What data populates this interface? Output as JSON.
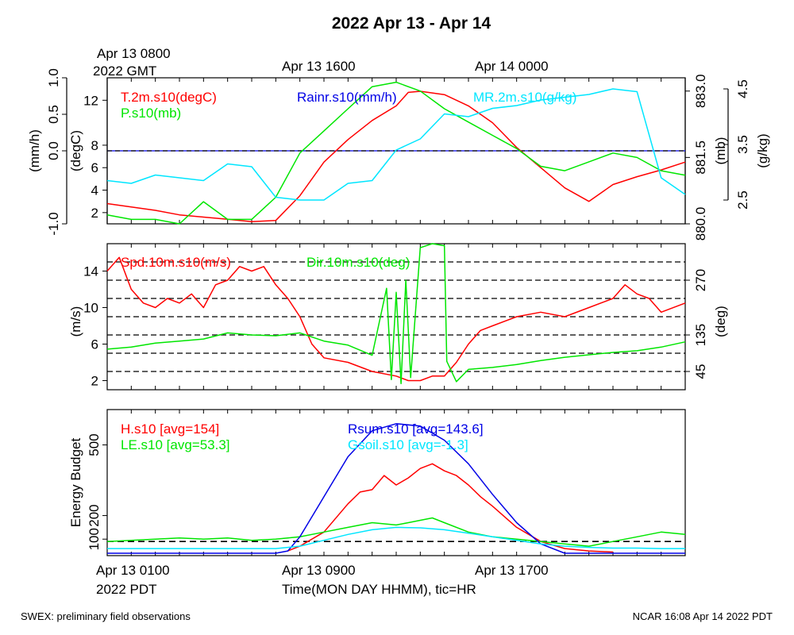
{
  "title": "2022 Apr 13 - Apr 14",
  "top_time_labels": {
    "start_line1": "Apr 13 0800",
    "start_line2": "2022 GMT",
    "mid": "Apr 13 1600",
    "end": "Apr 14 0000"
  },
  "bottom_time_labels": {
    "start_line1": "Apr 13 0100",
    "start_line2": "2022 PDT",
    "mid": "Apr 13 0900",
    "end": "Apr 13 1700"
  },
  "xlabel": "Time(MON DAY HHMM), tic=HR",
  "footer_left": "SWEX: preliminary field observations",
  "footer_right": "NCAR 16:08 Apr 14 2022 PDT",
  "colors": {
    "red": "#ff0000",
    "green": "#00e600",
    "blue": "#0000e6",
    "cyan": "#00e6ff",
    "black": "#000000"
  },
  "chart_data": [
    {
      "type": "line",
      "panel": "met",
      "x_range_hours": [
        0,
        24
      ],
      "x_ticks_hours": [
        1,
        2,
        3,
        4,
        5,
        6,
        7,
        8,
        9,
        10,
        11,
        12,
        13,
        14,
        15,
        16,
        17,
        18,
        19,
        20,
        21,
        22,
        23
      ],
      "axes": {
        "rain": {
          "ylabel": "(mm/h)",
          "range": [
            -1.0,
            1.0
          ],
          "ticks": [
            -1.0,
            0.0,
            0.5,
            1.0
          ],
          "tick_labels": [
            "-1.0",
            "0.0",
            "0.5",
            "1.0"
          ]
        },
        "temp": {
          "ylabel": "(degC)",
          "range": [
            1,
            14
          ],
          "ticks": [
            2,
            4,
            6,
            8,
            12
          ],
          "tick_labels": [
            "2",
            "4",
            "6",
            "8",
            "12"
          ]
        },
        "pres": {
          "ylabel": "(mb)",
          "range": [
            880.0,
            883.3
          ],
          "ticks": [
            880.0,
            881.5,
            883.0
          ],
          "tick_labels": [
            "880.0",
            "881.5",
            "883.0"
          ]
        },
        "mr": {
          "ylabel": "(g/kg)",
          "range": [
            2.5,
            4.5
          ],
          "ticks": [
            2.5,
            3.5,
            4.5
          ],
          "tick_labels": [
            "2.5",
            "3.5",
            "4.5"
          ]
        }
      },
      "zero_line_temp": 7.5,
      "series": [
        {
          "name": "T.2m.s10(degC)",
          "color": "#ff0000",
          "axis": "temp",
          "x": [
            0,
            1,
            2,
            3,
            4,
            5,
            6,
            7,
            8,
            9,
            10,
            11,
            12,
            12.5,
            13,
            14,
            15,
            16,
            17,
            18,
            19,
            20,
            21,
            22,
            23,
            24
          ],
          "y": [
            2.8,
            2.5,
            2.2,
            1.8,
            1.6,
            1.4,
            1.2,
            1.3,
            3.5,
            6.5,
            8.5,
            10.2,
            11.5,
            12.7,
            12.8,
            12.5,
            11.5,
            10.0,
            7.8,
            6.0,
            4.2,
            3.0,
            4.5,
            5.2,
            5.8,
            6.5
          ]
        },
        {
          "name": "P.s10(mb)",
          "color": "#00e600",
          "axis": "pres",
          "x": [
            0,
            1,
            2,
            3,
            4,
            5,
            6,
            7,
            8,
            9,
            10,
            11,
            12,
            13,
            14,
            15,
            16,
            17,
            18,
            19,
            20,
            21,
            22,
            23,
            24
          ],
          "y": [
            880.2,
            880.1,
            880.1,
            880.0,
            880.5,
            880.1,
            880.1,
            880.6,
            881.6,
            882.1,
            882.6,
            883.1,
            883.2,
            883.0,
            882.6,
            882.3,
            882.0,
            881.7,
            881.3,
            881.2,
            881.4,
            881.6,
            881.5,
            881.2,
            881.1
          ]
        },
        {
          "name": "MR.2m.s10(g/kg)",
          "color": "#00e6ff",
          "axis": "mr",
          "x": [
            0,
            1,
            2,
            3,
            4,
            5,
            6,
            7,
            8,
            9,
            10,
            11,
            12,
            13,
            14,
            15,
            16,
            17,
            18,
            19,
            20,
            21,
            22,
            23,
            24
          ],
          "y": [
            2.85,
            2.8,
            2.95,
            2.9,
            2.85,
            3.15,
            3.1,
            2.55,
            2.45,
            2.45,
            2.8,
            2.85,
            3.4,
            3.6,
            4.05,
            4.0,
            4.15,
            4.2,
            4.3,
            4.35,
            4.4,
            4.5,
            4.45,
            2.9,
            2.6
          ]
        },
        {
          "name": "Rainr.s10(mm/h)",
          "color": "#0000e6",
          "axis": "rain",
          "x": [
            0,
            24
          ],
          "y": [
            0.0,
            0.0
          ]
        }
      ]
    },
    {
      "type": "line",
      "panel": "wind",
      "x_range_hours": [
        0,
        24
      ],
      "axes": {
        "spd": {
          "ylabel": "(m/s)",
          "range": [
            1,
            17
          ],
          "ticks": [
            2,
            6,
            10,
            14
          ],
          "tick_labels": [
            "2",
            "6",
            "10",
            "14"
          ]
        },
        "dir": {
          "ylabel": "(deg)",
          "range": [
            0,
            360
          ],
          "ticks": [
            45,
            135,
            270
          ],
          "tick_labels": [
            "45",
            "135",
            "270"
          ]
        }
      },
      "dashed_lines_dir": [
        45,
        90,
        135,
        180,
        225,
        270,
        315
      ],
      "series": [
        {
          "name": "Spd.10m.s10(m/s)",
          "color": "#ff0000",
          "axis": "spd",
          "x": [
            0,
            0.5,
            1,
            1.5,
            2,
            2.5,
            3,
            3.5,
            4,
            4.5,
            5,
            5.5,
            6,
            6.5,
            7,
            7.5,
            8,
            8.5,
            9,
            10,
            11,
            12,
            12.5,
            13,
            13.5,
            14,
            14.5,
            15,
            15.5,
            16,
            17,
            18,
            19,
            20,
            21,
            21.5,
            22,
            22.5,
            23,
            24
          ],
          "y": [
            14.0,
            15.5,
            12.0,
            10.5,
            10.0,
            11.0,
            10.5,
            11.5,
            10.0,
            12.5,
            13.0,
            14.5,
            14.0,
            14.5,
            12.5,
            11.0,
            9.0,
            6.0,
            4.5,
            4.0,
            3.0,
            2.5,
            2.0,
            2.0,
            2.5,
            2.5,
            4.0,
            6.0,
            7.5,
            8.0,
            9.0,
            9.5,
            9.0,
            10.0,
            11.0,
            12.5,
            11.5,
            11.0,
            9.5,
            10.5
          ]
        },
        {
          "name": "Dir.10m.s10(deg)",
          "color": "#00e600",
          "axis": "dir",
          "x": [
            0,
            1,
            2,
            3,
            4,
            5,
            6,
            7,
            8,
            9,
            10,
            11,
            11.6,
            11.8,
            12,
            12.2,
            12.4,
            12.6,
            13,
            13.5,
            14,
            14.1,
            14.5,
            15,
            16,
            17,
            18,
            19,
            20,
            21,
            22,
            23,
            24
          ],
          "y": [
            100,
            105,
            115,
            120,
            125,
            140,
            135,
            133,
            140,
            120,
            110,
            85,
            250,
            25,
            240,
            15,
            270,
            30,
            350,
            360,
            355,
            70,
            20,
            50,
            55,
            62,
            72,
            80,
            86,
            92,
            96,
            105,
            118
          ]
        }
      ]
    },
    {
      "type": "line",
      "panel": "energy",
      "x_range_hours": [
        0,
        24
      ],
      "ylabel": "Energy Budget",
      "y_range": [
        30,
        650
      ],
      "y_ticks": [
        100,
        200,
        500
      ],
      "y_tick_labels": [
        "100",
        "200",
        "500"
      ],
      "zero_line": 90,
      "series": [
        {
          "name": "H.s10 [avg=154]",
          "color": "#ff0000",
          "x": [
            7.5,
            8,
            9,
            10,
            10.5,
            11,
            11.5,
            12,
            12.5,
            13,
            13.5,
            14,
            14.5,
            15,
            15.5,
            16,
            17,
            18,
            19,
            20,
            21
          ],
          "y": [
            50,
            70,
            130,
            250,
            300,
            310,
            370,
            330,
            360,
            400,
            420,
            390,
            370,
            330,
            280,
            240,
            150,
            90,
            60,
            50,
            45
          ]
        },
        {
          "name": "LE.s10 [avg=53.3]",
          "color": "#00e600",
          "x": [
            0,
            1,
            2,
            3,
            4,
            5,
            6,
            7,
            8,
            9,
            10,
            11,
            12,
            12.5,
            13,
            13.5,
            14,
            15,
            16,
            17,
            18,
            19,
            20,
            21,
            22,
            23,
            24
          ],
          "y": [
            90,
            95,
            100,
            105,
            100,
            105,
            95,
            100,
            110,
            130,
            150,
            170,
            160,
            170,
            180,
            190,
            170,
            130,
            110,
            100,
            90,
            80,
            70,
            90,
            110,
            130,
            120
          ]
        },
        {
          "name": "Rsum.s10 [avg=143.6]",
          "color": "#0000e6",
          "x": [
            0,
            1,
            2,
            3,
            4,
            5,
            6,
            7,
            7.5,
            8,
            9,
            10,
            11,
            12,
            13,
            14,
            15,
            16,
            17,
            18,
            19,
            20,
            21,
            22,
            23,
            24
          ],
          "y": [
            40,
            40,
            40,
            40,
            40,
            40,
            40,
            40,
            50,
            110,
            280,
            450,
            560,
            590,
            580,
            520,
            420,
            290,
            170,
            80,
            40,
            40,
            40,
            40,
            40,
            40
          ]
        },
        {
          "name": "Gsoil.s10 [avg=-1.3]",
          "color": "#00e6ff",
          "x": [
            0,
            1,
            2,
            3,
            4,
            5,
            6,
            7,
            8,
            9,
            10,
            11,
            12,
            13,
            14,
            15,
            16,
            17,
            18,
            19,
            20,
            21,
            22,
            23,
            24
          ],
          "y": [
            60,
            60,
            60,
            60,
            60,
            60,
            60,
            60,
            70,
            95,
            120,
            140,
            150,
            148,
            140,
            125,
            110,
            95,
            80,
            70,
            65,
            62,
            62,
            60,
            60
          ]
        }
      ]
    }
  ]
}
